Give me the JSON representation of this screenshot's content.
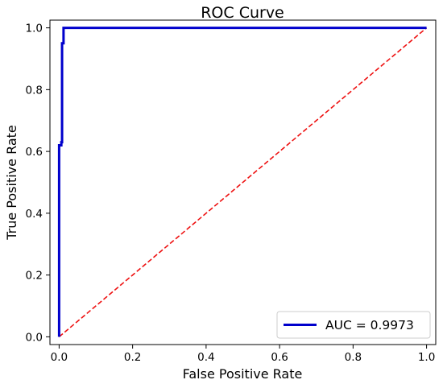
{
  "chart_data": {
    "type": "line",
    "title": "ROC Curve",
    "xlabel": "False Positive Rate",
    "ylabel": "True Positive Rate",
    "xlim": [
      -0.025,
      1.025
    ],
    "ylim": [
      -0.025,
      1.025
    ],
    "xticks": [
      0.0,
      0.2,
      0.4,
      0.6,
      0.8,
      1.0
    ],
    "xtick_labels": [
      "0.0",
      "0.2",
      "0.4",
      "0.6",
      "0.8",
      "1.0"
    ],
    "yticks": [
      0.0,
      0.2,
      0.4,
      0.6,
      0.8,
      1.0
    ],
    "ytick_labels": [
      "0.0",
      "0.2",
      "0.4",
      "0.6",
      "0.8",
      "1.0"
    ],
    "grid": false,
    "legend_position": "lower-right",
    "series": [
      {
        "name": "AUC = 0.9973",
        "color": "#0000cc",
        "style": "solid",
        "x": [
          0.0,
          0.0,
          0.0,
          0.006,
          0.006,
          0.008,
          0.008,
          0.012,
          0.012,
          1.0
        ],
        "y": [
          0.0,
          0.02,
          0.62,
          0.62,
          0.63,
          0.63,
          0.95,
          0.95,
          1.0,
          1.0
        ]
      },
      {
        "name": "",
        "color": "#ee1111",
        "style": "dashed",
        "x": [
          0.0,
          1.0
        ],
        "y": [
          0.0,
          1.0
        ]
      }
    ]
  }
}
